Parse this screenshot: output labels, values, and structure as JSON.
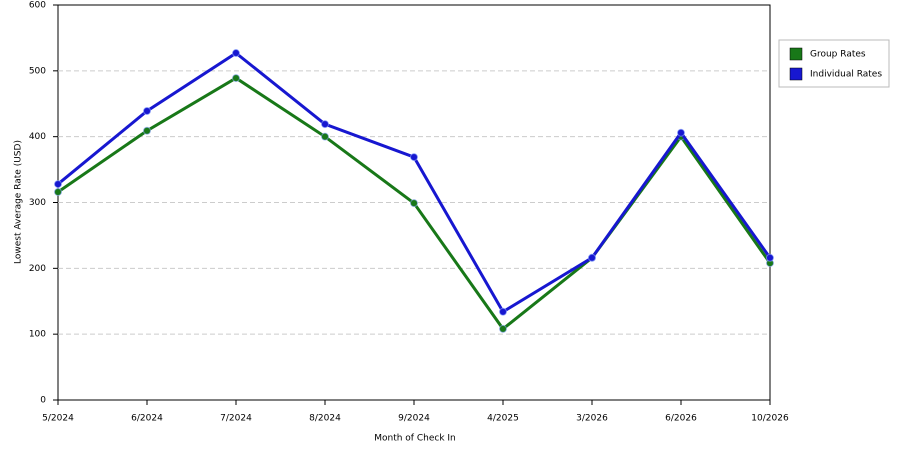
{
  "chart_data": {
    "type": "line",
    "x_label": "Month of Check In",
    "y_label": "Lowest Average Rate (USD)",
    "categories": [
      "5/2024",
      "6/2024",
      "7/2024",
      "8/2024",
      "9/2024",
      "4/2025",
      "3/2026",
      "6/2026",
      "10/2026"
    ],
    "series": [
      {
        "name": "Group Rates",
        "color": "#187818",
        "values": [
          316,
          409,
          489,
          400,
          299,
          108,
          216,
          400,
          208
        ]
      },
      {
        "name": "Individual Rates",
        "color": "#1717d0",
        "values": [
          328,
          439,
          527,
          419,
          369,
          134,
          216,
          406,
          216
        ]
      }
    ],
    "ylim": [
      0,
      600
    ],
    "yticks": [
      0,
      100,
      200,
      300,
      400,
      500,
      600
    ],
    "grid": true
  }
}
